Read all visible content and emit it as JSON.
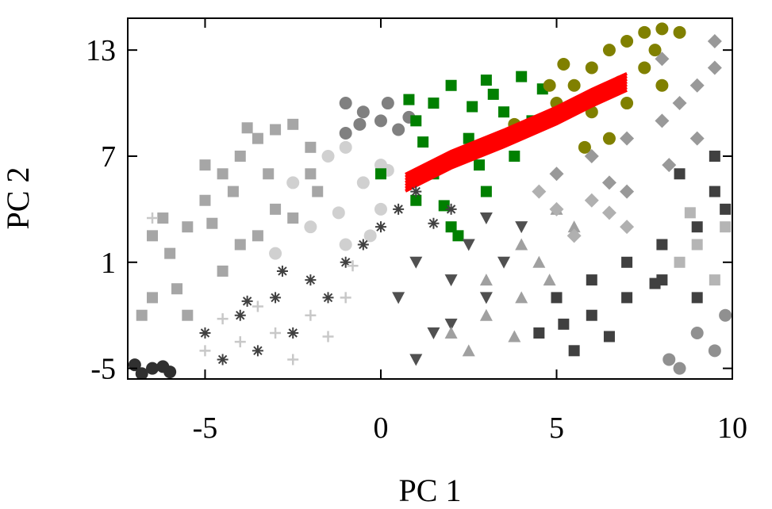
{
  "chart_data": {
    "type": "scatter",
    "title": "",
    "xlabel": "PC 1",
    "ylabel": "PC 2",
    "xlim": [
      -7.2,
      10
    ],
    "ylim": [
      -5.6,
      14.8
    ],
    "xticks": [
      -5,
      0,
      5,
      10
    ],
    "yticks": [
      -5,
      1,
      7,
      13
    ],
    "grid": false,
    "legend": "none",
    "series": [
      {
        "color": "#a6a6a6",
        "marker": "square",
        "points": [
          [
            -6.5,
            -1
          ],
          [
            -6,
            1.5
          ],
          [
            -5.5,
            3
          ],
          [
            -5,
            4.5
          ],
          [
            -4.5,
            6
          ],
          [
            -4,
            7
          ],
          [
            -3.5,
            8
          ],
          [
            -3,
            8.5
          ],
          [
            -2.5,
            8.8
          ],
          [
            -4,
            2
          ],
          [
            -3,
            4
          ],
          [
            -2,
            6
          ],
          [
            -6.8,
            -2
          ],
          [
            -5.8,
            -0.5
          ],
          [
            -4.5,
            0.5
          ],
          [
            -3.5,
            2.5
          ],
          [
            -2.5,
            3.5
          ],
          [
            -1.8,
            5
          ],
          [
            -5,
            6.5
          ],
          [
            -4.2,
            5
          ],
          [
            -6.2,
            3.5
          ],
          [
            -3.8,
            8.6
          ],
          [
            -3.2,
            6
          ],
          [
            -2,
            7.5
          ],
          [
            -6.5,
            2.5
          ],
          [
            -4.8,
            3.2
          ],
          [
            -5.5,
            -2
          ]
        ]
      },
      {
        "color": "#d0d0d0",
        "marker": "circle",
        "points": [
          [
            -1.5,
            7
          ],
          [
            -1,
            7.5
          ],
          [
            0,
            6.5
          ],
          [
            -2,
            3
          ],
          [
            -1,
            2
          ],
          [
            0,
            4
          ],
          [
            -0.5,
            5.5
          ],
          [
            -3,
            1.5
          ],
          [
            -2.5,
            5.5
          ],
          [
            -1.2,
            3.8
          ],
          [
            0.2,
            6.2
          ],
          [
            -0.3,
            2.5
          ]
        ]
      },
      {
        "color": "#808080",
        "marker": "circle",
        "points": [
          [
            -1,
            10
          ],
          [
            -0.5,
            9.5
          ],
          [
            0,
            9
          ],
          [
            0.5,
            8.5
          ],
          [
            -1,
            8.3
          ],
          [
            0.2,
            10
          ],
          [
            -0.6,
            8.8
          ],
          [
            0.8,
            9.2
          ]
        ]
      },
      {
        "color": "#008000",
        "marker": "square",
        "points": [
          [
            1,
            9
          ],
          [
            1.5,
            10
          ],
          [
            2,
            11
          ],
          [
            3,
            11.3
          ],
          [
            4,
            11.5
          ],
          [
            3.5,
            9.5
          ],
          [
            2.5,
            8
          ],
          [
            1.5,
            6
          ],
          [
            1,
            4.5
          ],
          [
            2,
            3
          ],
          [
            3,
            5
          ],
          [
            3.8,
            7
          ],
          [
            0,
            6
          ],
          [
            2.2,
            2.5
          ],
          [
            4.3,
            9
          ],
          [
            1.2,
            7.8
          ],
          [
            2.8,
            6.5
          ],
          [
            3.2,
            10.5
          ],
          [
            1.8,
            4.2
          ],
          [
            0.8,
            10.2
          ],
          [
            4.6,
            10.8
          ],
          [
            2.6,
            9.8
          ]
        ]
      },
      {
        "color": "#808000",
        "marker": "circle",
        "points": [
          [
            5,
            10
          ],
          [
            5.5,
            11
          ],
          [
            6,
            12
          ],
          [
            6.5,
            13
          ],
          [
            7,
            13.5
          ],
          [
            7.5,
            14
          ],
          [
            8,
            14.2
          ],
          [
            8.5,
            14
          ],
          [
            7.5,
            12
          ],
          [
            7,
            10
          ],
          [
            6.5,
            8
          ],
          [
            4.5,
            9
          ],
          [
            6,
            9.5
          ],
          [
            8,
            11
          ],
          [
            5.2,
            12.2
          ],
          [
            6.8,
            11.2
          ],
          [
            7.8,
            13
          ],
          [
            4.8,
            11
          ],
          [
            5.8,
            7.5
          ],
          [
            3.8,
            8.8
          ]
        ]
      },
      {
        "color": "#ff0000",
        "marker": "line",
        "points": [
          [
            0.7,
            5.5
          ],
          [
            2,
            6.8
          ],
          [
            3.5,
            8
          ],
          [
            5,
            9.3
          ],
          [
            6,
            10.3
          ],
          [
            7,
            11.2
          ]
        ]
      },
      {
        "color": "#404040",
        "marker": "asterisk",
        "points": [
          [
            -5,
            -3
          ],
          [
            -4,
            -2
          ],
          [
            -3,
            -1
          ],
          [
            -2,
            0
          ],
          [
            -1,
            1
          ],
          [
            0,
            3
          ],
          [
            0.5,
            4
          ],
          [
            1,
            5
          ],
          [
            2,
            4
          ],
          [
            -4.5,
            -4.5
          ],
          [
            -3.5,
            -4
          ],
          [
            -2.5,
            -3
          ],
          [
            -1.5,
            -1
          ],
          [
            -0.5,
            2
          ],
          [
            1.5,
            3.2
          ],
          [
            -2.8,
            0.5
          ],
          [
            -3.8,
            -1.2
          ]
        ]
      },
      {
        "color": "#c8c8c8",
        "marker": "plus",
        "points": [
          [
            -5,
            -4
          ],
          [
            -4,
            -3.5
          ],
          [
            -3,
            -3
          ],
          [
            -2,
            -2
          ],
          [
            -1,
            -1
          ],
          [
            -3.5,
            -1.5
          ],
          [
            -2.5,
            -4.5
          ],
          [
            -6.5,
            3.5
          ],
          [
            -1.5,
            -3.2
          ],
          [
            -4.5,
            -2.2
          ],
          [
            -0.8,
            0.8
          ]
        ]
      },
      {
        "color": "#505050",
        "marker": "triangle-down",
        "points": [
          [
            1,
            1
          ],
          [
            2,
            0
          ],
          [
            3,
            -1
          ],
          [
            1.5,
            -3
          ],
          [
            2.5,
            2
          ],
          [
            0.5,
            -1
          ],
          [
            3.5,
            1
          ],
          [
            2,
            -2.5
          ],
          [
            1,
            -4.5
          ],
          [
            4,
            3
          ],
          [
            3,
            3.5
          ]
        ]
      },
      {
        "color": "#a0a0a0",
        "marker": "triangle",
        "points": [
          [
            2,
            -3
          ],
          [
            3,
            -2
          ],
          [
            4,
            -1
          ],
          [
            4.5,
            1
          ],
          [
            3,
            0
          ],
          [
            2.5,
            -4
          ],
          [
            4,
            2
          ],
          [
            5,
            4
          ],
          [
            5.5,
            3
          ],
          [
            3.8,
            -3.2
          ],
          [
            4.8,
            0
          ]
        ]
      },
      {
        "color": "#999999",
        "marker": "diamond",
        "points": [
          [
            5,
            6
          ],
          [
            6,
            7
          ],
          [
            7,
            8
          ],
          [
            8,
            9
          ],
          [
            8.5,
            10
          ],
          [
            9,
            11
          ],
          [
            9.5,
            12
          ],
          [
            8,
            12.5
          ],
          [
            7,
            5
          ],
          [
            9,
            8
          ],
          [
            9.5,
            13.5
          ],
          [
            6.5,
            5.5
          ],
          [
            8.2,
            6.5
          ]
        ]
      },
      {
        "color": "#b0b0b0",
        "marker": "diamond",
        "points": [
          [
            4.5,
            5
          ],
          [
            5,
            4
          ],
          [
            6,
            4.5
          ],
          [
            7,
            3
          ],
          [
            5.5,
            2.5
          ],
          [
            6.5,
            3.8
          ]
        ]
      },
      {
        "color": "#404040",
        "marker": "square",
        "points": [
          [
            5,
            -1
          ],
          [
            6,
            0
          ],
          [
            7,
            1
          ],
          [
            8,
            2
          ],
          [
            9,
            3
          ],
          [
            9.5,
            5
          ],
          [
            9.5,
            7
          ],
          [
            4.5,
            -3
          ],
          [
            5.5,
            -4
          ],
          [
            6,
            -2
          ],
          [
            7,
            -1
          ],
          [
            8,
            0
          ],
          [
            9,
            -1
          ],
          [
            9.8,
            4
          ],
          [
            8.5,
            6
          ],
          [
            6.5,
            -3.2
          ],
          [
            7.8,
            -0.2
          ],
          [
            5.2,
            -2.5
          ]
        ]
      },
      {
        "color": "#b5b5b5",
        "marker": "square",
        "points": [
          [
            8.5,
            1
          ],
          [
            9,
            2
          ],
          [
            9.5,
            0
          ],
          [
            9.8,
            3
          ],
          [
            8.8,
            3.8
          ]
        ]
      },
      {
        "color": "#909090",
        "marker": "circle",
        "points": [
          [
            9,
            -3
          ],
          [
            9.5,
            -4
          ],
          [
            8.5,
            -5
          ],
          [
            9.8,
            -2
          ],
          [
            8.2,
            -4.5
          ]
        ]
      },
      {
        "color": "#303030",
        "marker": "circle",
        "points": [
          [
            -7,
            -4.8
          ],
          [
            -6.5,
            -5
          ],
          [
            -6,
            -5.2
          ],
          [
            -6.8,
            -5.3
          ],
          [
            -6.2,
            -4.9
          ]
        ]
      }
    ]
  }
}
